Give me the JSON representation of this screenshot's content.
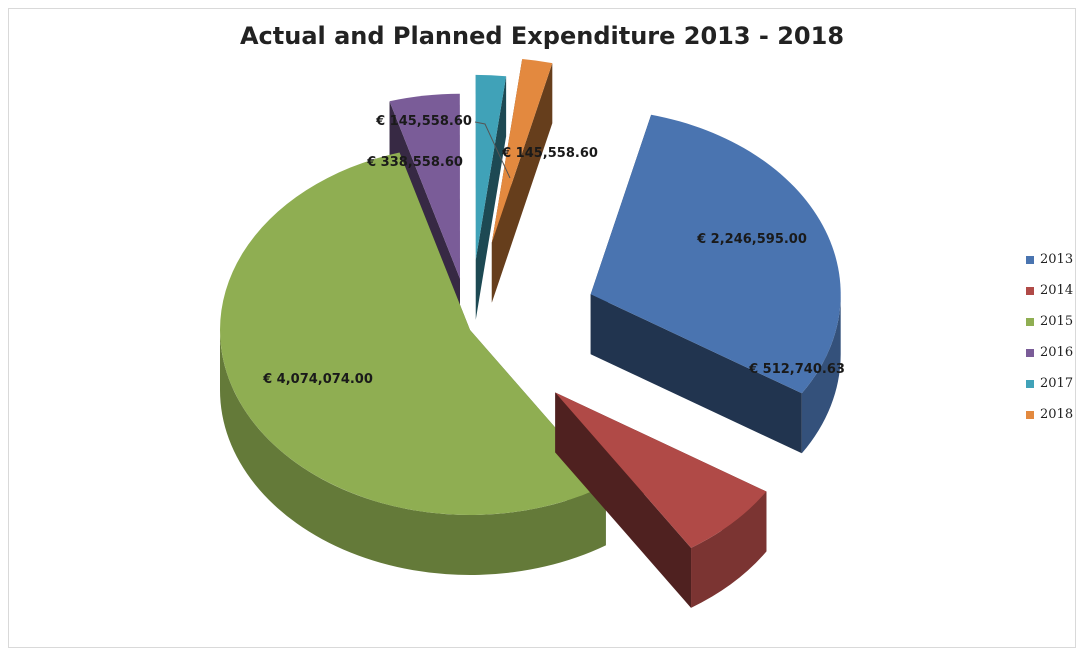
{
  "chart_data": {
    "type": "pie",
    "title": "Actual and Planned Expenditure 2013 - 2018",
    "categories": [
      "2013",
      "2014",
      "2015",
      "2016",
      "2017",
      "2018"
    ],
    "values": [
      2246595.0,
      512740.63,
      4074074.0,
      338558.6,
      145558.6,
      145558.6
    ],
    "data_labels": [
      "€ 2,246,595.00",
      "€ 512,740.63",
      "€ 4,074,074.00",
      "€ 338,558.60",
      "€ 145,558.60",
      "€ 145,558.60"
    ],
    "colors": [
      "#4a74b0",
      "#b04a47",
      "#8fae52",
      "#7a5c98",
      "#40a2b8",
      "#e3893f"
    ],
    "legend_position": "right",
    "style": "3d-exploded"
  }
}
